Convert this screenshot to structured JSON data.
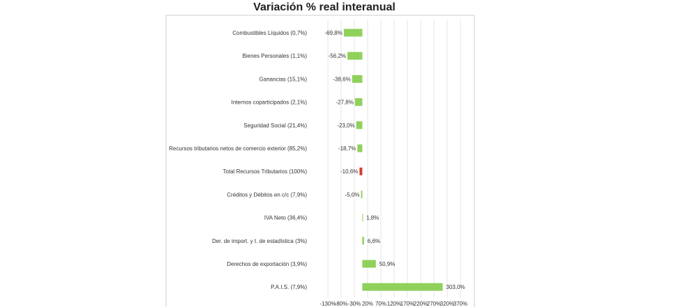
{
  "chart_data": {
    "type": "bar",
    "orientation": "horizontal",
    "title": "Variación % real interanual",
    "xlabel": "",
    "ylabel": "",
    "xlim": [
      -130,
      370
    ],
    "grid": true,
    "categories": [
      "Combustibles Líquidos (0,7%)",
      "Bienes Personales (1,1%)",
      "Ganancias (15,1%)",
      "Internos coparticipados (2,1%)",
      "Seguridad Social (21,4%)",
      "Recursos tributarios netos de comercio exterior (85,2%)",
      "Total Recursos Tributarios (100%)",
      "Créditos y Débitos en c/c (7,9%)",
      "IVA Neto (36,4%)",
      "Der. de import. y t. de estadística (3%)",
      "Derechos de exportación (3,9%)",
      "P.A.I.S. (7,9%)"
    ],
    "values": [
      -69.8,
      -56.2,
      -38.6,
      -27.8,
      -23.0,
      -18.7,
      -10.6,
      -5.0,
      1.8,
      6.6,
      50.9,
      303.0
    ],
    "value_labels": [
      "-69,8%",
      "-56,2%",
      "-38,6%",
      "-27,8%",
      "-23,0%",
      "-18,7%",
      "-10,6%",
      "-5,0%",
      "1,8%",
      "6,6%",
      "50,9%",
      "303,0%"
    ],
    "x_ticks": [
      -130,
      -80,
      -30,
      20,
      70,
      120,
      170,
      220,
      270,
      320,
      370
    ],
    "x_tick_labels": [
      "-130%",
      "-80%",
      "-30%",
      "20%",
      "70%",
      "120%",
      "170%",
      "220%",
      "270%",
      "320%",
      "370%"
    ],
    "highlight_index": 6,
    "colors": {
      "bar": "#8fd15a",
      "highlight": "#d63a2f",
      "grid": "#e6e6e6",
      "frame": "#cccccc"
    }
  }
}
